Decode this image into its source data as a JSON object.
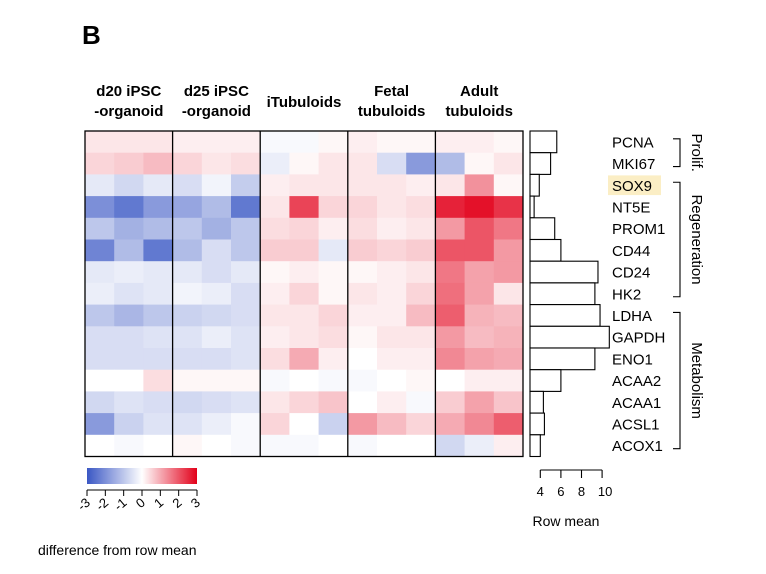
{
  "panel_label": "B",
  "chart_data": {
    "type": "heatmap",
    "groups": [
      {
        "title_line1": "d20 iPSC",
        "title_line2": "-organoid",
        "n": 3
      },
      {
        "title_line1": "d25 iPSC",
        "title_line2": "-organoid",
        "n": 3
      },
      {
        "title_line1": "iTubuloids",
        "title_line2": "",
        "n": 3
      },
      {
        "title_line1": "Fetal",
        "title_line2": "tubuloids",
        "n": 3
      },
      {
        "title_line1": "Adult",
        "title_line2": "tubuloids",
        "n": 3
      }
    ],
    "genes": [
      "PCNA",
      "MKI67",
      "SOX9",
      "NT5E",
      "PROM1",
      "CD44",
      "CD24",
      "HK2",
      "LDHA",
      "GAPDH",
      "ENO1",
      "ACAA2",
      "ACAA1",
      "ACSL1",
      "ACOX1"
    ],
    "highlighted_gene": "SOX9",
    "highlight_color": "#fbeec5",
    "values": [
      [
        0.3,
        0.3,
        0.3,
        0.2,
        0.2,
        0.2,
        -0.1,
        -0.1,
        0.1,
        0.2,
        0.1,
        0.1,
        0.2,
        0.2,
        0.1
      ],
      [
        0.5,
        0.6,
        0.8,
        0.5,
        0.3,
        0.4,
        -0.3,
        0.1,
        0.3,
        0.3,
        -0.6,
        -1.8,
        -1.2,
        0.1,
        0.3
      ],
      [
        -0.4,
        -0.7,
        -0.4,
        -0.6,
        -0.2,
        -0.9,
        0.2,
        0.3,
        0.3,
        0.3,
        0.3,
        0.2,
        0.3,
        1.3,
        0.1
      ],
      [
        -2.0,
        -2.4,
        -1.8,
        -1.6,
        -1.2,
        -2.4,
        0.3,
        2.2,
        0.5,
        0.5,
        0.3,
        0.4,
        2.6,
        2.8,
        2.4
      ],
      [
        -1.0,
        -1.4,
        -1.2,
        -1.0,
        -1.4,
        -1.0,
        0.4,
        0.5,
        0.2,
        0.4,
        0.2,
        0.3,
        1.2,
        2.0,
        1.6
      ],
      [
        -2.2,
        -1.2,
        -2.4,
        -1.2,
        -0.6,
        -1.0,
        0.6,
        0.6,
        -0.4,
        0.6,
        0.5,
        0.6,
        2.0,
        2.0,
        1.2
      ],
      [
        -0.4,
        -0.3,
        -0.4,
        -0.4,
        -0.6,
        -0.4,
        0.1,
        0.2,
        0.1,
        0.1,
        0.2,
        0.3,
        1.6,
        1.1,
        1.2
      ],
      [
        -0.3,
        -0.5,
        -0.4,
        -0.2,
        -0.3,
        -0.6,
        0.2,
        0.5,
        0.1,
        0.3,
        0.2,
        0.5,
        1.7,
        1.1,
        0.3
      ],
      [
        -1.0,
        -1.3,
        -1.0,
        -0.8,
        -0.7,
        -0.6,
        0.3,
        0.3,
        0.5,
        0.2,
        0.2,
        0.8,
        1.9,
        0.9,
        0.8
      ],
      [
        -0.6,
        -0.6,
        -0.5,
        -0.5,
        -0.3,
        -0.5,
        0.2,
        0.3,
        0.4,
        0.1,
        0.3,
        0.3,
        1.2,
        0.8,
        0.9
      ],
      [
        -0.6,
        -0.6,
        -0.6,
        -0.6,
        -0.6,
        -0.5,
        0.4,
        1.0,
        0.2,
        0.0,
        0.2,
        0.2,
        1.4,
        1.1,
        1.0
      ],
      [
        0.0,
        0.0,
        0.4,
        0.1,
        0.1,
        0.1,
        -0.1,
        0.0,
        -0.1,
        -0.1,
        0.0,
        0.1,
        0.0,
        0.2,
        0.2
      ],
      [
        -0.7,
        -0.5,
        -0.6,
        -0.7,
        -0.6,
        -0.5,
        0.3,
        0.5,
        0.7,
        0.0,
        0.2,
        -0.1,
        0.6,
        1.1,
        0.7
      ],
      [
        -1.8,
        -0.8,
        -0.5,
        -0.5,
        -0.3,
        -0.1,
        0.5,
        0.0,
        -0.8,
        1.2,
        0.8,
        0.5,
        1.0,
        1.4,
        1.9
      ],
      [
        0.0,
        -0.1,
        0.0,
        0.1,
        0.0,
        -0.1,
        -0.1,
        -0.1,
        0.0,
        -0.1,
        0.0,
        0.0,
        -0.7,
        -0.3,
        0.2
      ]
    ],
    "row_means": [
      5.6,
      5.0,
      3.9,
      3.4,
      5.4,
      6.0,
      9.6,
      9.3,
      9.8,
      10.7,
      9.3,
      6.0,
      4.3,
      4.4,
      4.0
    ],
    "row_mean_axis": {
      "label": "Row mean",
      "ticks": [
        4,
        6,
        8,
        10
      ],
      "tick_labels": [
        "4",
        "6",
        "8",
        "10"
      ],
      "range": [
        3,
        11
      ]
    },
    "color_scale": {
      "label": "difference from row mean",
      "range": [
        -3,
        3
      ],
      "ticks": [
        -3,
        -2,
        -1,
        0,
        1,
        2,
        3
      ],
      "tick_labels": [
        "-3",
        "-2",
        "-1",
        "0",
        "1",
        "2",
        "3"
      ],
      "low_color": "#3a57c4",
      "mid_color": "#ffffff",
      "high_color": "#e2001a"
    },
    "annotations": [
      {
        "label": "Prolif.",
        "from_gene": 0,
        "to_gene": 1
      },
      {
        "label": "Regeneration",
        "from_gene": 2,
        "to_gene": 7
      },
      {
        "label": "Metabolism",
        "from_gene": 8,
        "to_gene": 14
      }
    ]
  }
}
